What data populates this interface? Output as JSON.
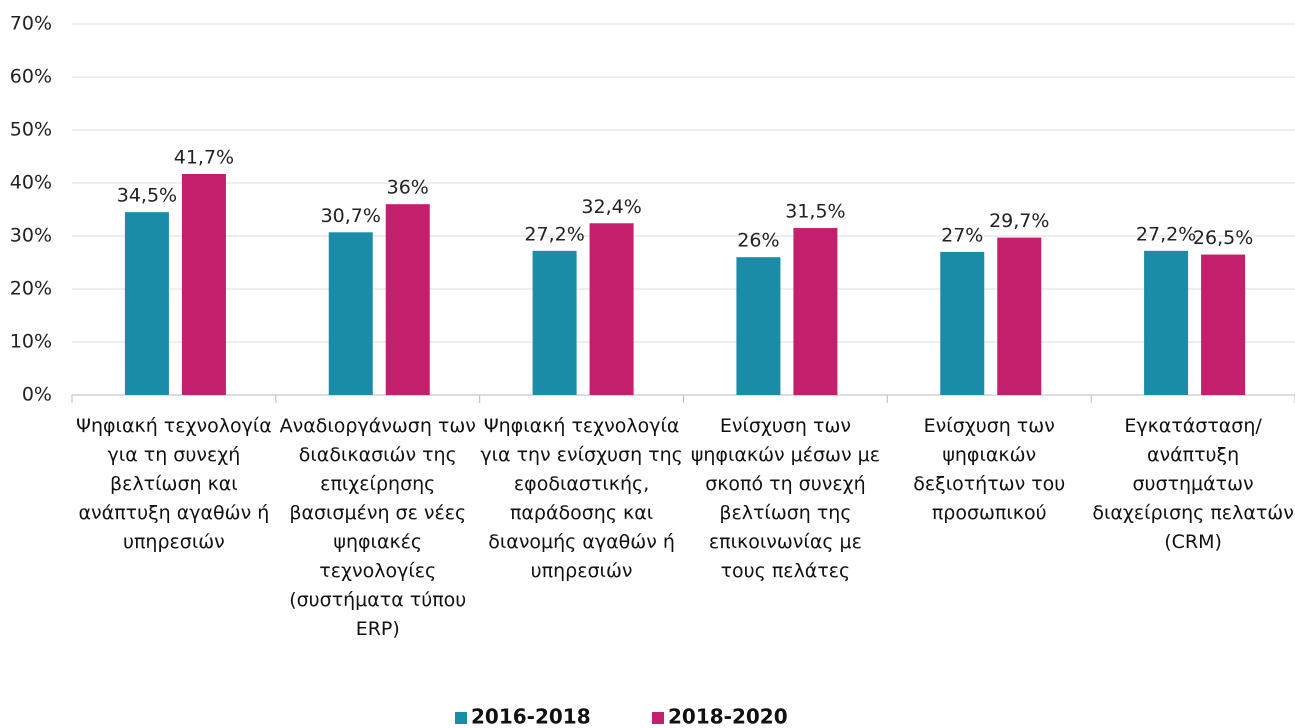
{
  "chart_data": {
    "type": "bar",
    "categories": [
      "Ψηφιακή τεχνολογία για τη συνεχή βελτίωση και ανάπτυξη αγαθών ή υπηρεσιών",
      "Αναδιοργάνωση των διαδικασιών της επιχείρησης βασισμένη σε νέες ψηφιακές τεχνολογίες (συστήματα τύπου ERP)",
      "Ψηφιακή τεχνολογία για την ενίσχυση της εφοδιαστικής, παράδοσης και διανομής αγαθών ή υπηρεσιών",
      "Ενίσχυση των ψηφιακών μέσων με σκοπό τη συνεχή βελτίωση της επικοινωνίας με τους πελάτες",
      "Ενίσχυση των ψηφιακών δεξιοτήτων του προσωπικού",
      "Εγκατάσταση/ ανάπτυξη συστημάτων διαχείρισης πελατών (CRM)"
    ],
    "series": [
      {
        "name": "2016-2018",
        "color": "#1a8ca8",
        "values": [
          34.5,
          30.7,
          27.2,
          26,
          27,
          27.2
        ],
        "value_labels": [
          "34,5%",
          "30,7%",
          "27,2%",
          "26%",
          "27%",
          "27,2%"
        ]
      },
      {
        "name": "2018-2020",
        "color": "#c41f6c",
        "values": [
          41.7,
          36,
          32.4,
          31.5,
          29.7,
          26.5
        ],
        "value_labels": [
          "41,7%",
          "36%",
          "32,4%",
          "31,5%",
          "29,7%",
          "26,5%"
        ]
      }
    ],
    "ylim": [
      0,
      70
    ],
    "yticks": [
      {
        "value": 0,
        "label": "0%"
      },
      {
        "value": 10,
        "label": "10%"
      },
      {
        "value": 20,
        "label": "20%"
      },
      {
        "value": 30,
        "label": "30%"
      },
      {
        "value": 40,
        "label": "40%"
      },
      {
        "value": 50,
        "label": "50%"
      },
      {
        "value": 60,
        "label": "60%"
      },
      {
        "value": 70,
        "label": "70%"
      }
    ],
    "grid": true,
    "legend": "bottom"
  }
}
